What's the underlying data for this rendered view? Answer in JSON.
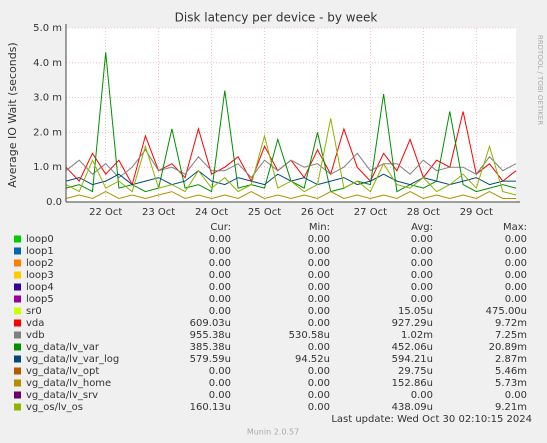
{
  "chart_data": {
    "type": "line",
    "title": "Disk latency per device - by week",
    "y_label": "Average IO Wait (seconds)",
    "watermark": "RRDTOOL / TOBI OETIKER",
    "categories": [
      null,
      null,
      null,
      "22 Oct",
      null,
      null,
      null,
      "23 Oct",
      null,
      null,
      null,
      "24 Oct",
      null,
      null,
      null,
      "25 Oct",
      null,
      null,
      null,
      "26 Oct",
      null,
      null,
      null,
      "27 Oct",
      null,
      null,
      null,
      "28 Oct",
      null,
      null,
      null,
      "29 Oct",
      null,
      null,
      null
    ],
    "ylim": [
      0,
      5
    ],
    "yticks": [
      {
        "value": 0,
        "label": "0.0"
      },
      {
        "value": 1,
        "label": "1.0 m"
      },
      {
        "value": 2,
        "label": "2.0 m"
      },
      {
        "value": 3,
        "label": "3.0 m"
      },
      {
        "value": 4,
        "label": "4.0 m"
      },
      {
        "value": 5,
        "label": "5.0 m"
      }
    ],
    "grid": true,
    "columns": [
      "Cur:",
      "Min:",
      "Avg:",
      "Max:"
    ],
    "series": [
      {
        "name": "loop0",
        "color": "#00cc00",
        "cur": "0.00",
        "min": "0.00",
        "avg": "0.00",
        "max": "0.00"
      },
      {
        "name": "loop1",
        "color": "#0066b3",
        "cur": "0.00",
        "min": "0.00",
        "avg": "0.00",
        "max": "0.00"
      },
      {
        "name": "loop2",
        "color": "#ff8000",
        "cur": "0.00",
        "min": "0.00",
        "avg": "0.00",
        "max": "0.00"
      },
      {
        "name": "loop3",
        "color": "#ffcc00",
        "cur": "0.00",
        "min": "0.00",
        "avg": "0.00",
        "max": "0.00"
      },
      {
        "name": "loop4",
        "color": "#330099",
        "cur": "0.00",
        "min": "0.00",
        "avg": "0.00",
        "max": "0.00"
      },
      {
        "name": "loop5",
        "color": "#990099",
        "cur": "0.00",
        "min": "0.00",
        "avg": "0.00",
        "max": "0.00"
      },
      {
        "name": "sr0",
        "color": "#ccff00",
        "cur": "0.00",
        "min": "0.00",
        "avg": "15.05u",
        "max": "475.00u"
      },
      {
        "name": "vda",
        "color": "#ff0000",
        "cur": "609.03u",
        "min": "0.00",
        "avg": "927.29u",
        "max": "9.72m",
        "values": [
          1.0,
          0.6,
          1.4,
          0.8,
          1.2,
          0.5,
          1.9,
          0.9,
          1.1,
          0.7,
          2.1,
          0.8,
          1.0,
          1.3,
          0.6,
          1.6,
          0.9,
          1.2,
          0.7,
          1.5,
          0.8,
          2.1,
          1.0,
          0.6,
          1.4,
          0.9,
          1.8,
          0.7,
          1.2,
          1.0,
          2.6,
          0.8,
          1.1,
          0.6,
          0.9
        ]
      },
      {
        "name": "vdb",
        "color": "#808080",
        "cur": "955.38u",
        "min": "530.58u",
        "avg": "1.02m",
        "max": "7.25m",
        "values": [
          0.9,
          1.2,
          0.8,
          1.1,
          0.7,
          1.0,
          1.5,
          0.9,
          1.0,
          0.8,
          1.3,
          0.9,
          0.9,
          1.1,
          0.7,
          1.2,
          0.9,
          1.2,
          1.0,
          1.1,
          0.8,
          1.0,
          1.4,
          0.9,
          1.1,
          1.1,
          0.8,
          1.2,
          0.9,
          1.0,
          1.0,
          0.8,
          1.3,
          0.9,
          1.1
        ]
      },
      {
        "name": "vg_data/lv_var",
        "color": "#008f00",
        "cur": "385.38u",
        "min": "0.00",
        "avg": "452.06u",
        "max": "20.89m",
        "values": [
          0.4,
          0.5,
          0.3,
          4.3,
          0.4,
          0.5,
          0.3,
          0.4,
          2.1,
          0.4,
          0.5,
          0.3,
          3.2,
          0.4,
          0.5,
          0.4,
          1.8,
          0.6,
          0.4,
          2.0,
          0.3,
          0.4,
          0.6,
          0.5,
          3.1,
          0.3,
          0.5,
          0.4,
          0.6,
          2.6,
          0.5,
          0.3,
          0.4,
          0.5,
          0.4
        ]
      },
      {
        "name": "vg_data/lv_var_log",
        "color": "#00487d",
        "cur": "579.59u",
        "min": "94.52u",
        "avg": "594.21u",
        "max": "2.87m",
        "values": [
          0.6,
          0.7,
          0.5,
          0.6,
          0.8,
          0.5,
          0.6,
          0.7,
          0.5,
          0.6,
          0.9,
          0.6,
          0.5,
          0.7,
          0.6,
          0.5,
          0.8,
          0.6,
          0.7,
          0.5,
          0.6,
          0.7,
          0.5,
          0.6,
          0.8,
          0.6,
          0.5,
          0.7,
          0.6,
          0.5,
          0.6,
          0.7,
          0.5,
          0.6,
          0.6
        ]
      },
      {
        "name": "vg_data/lv_opt",
        "color": "#b35a00",
        "cur": "0.00",
        "min": "0.00",
        "avg": "29.75u",
        "max": "5.46m"
      },
      {
        "name": "vg_data/lv_home",
        "color": "#b38f00",
        "cur": "0.00",
        "min": "0.00",
        "avg": "152.86u",
        "max": "5.73m",
        "values": [
          0.1,
          0.2,
          0.1,
          0.3,
          0.1,
          0.2,
          0.1,
          0.2,
          0.3,
          0.1,
          0.2,
          0.1,
          0.2,
          0.1,
          0.3,
          0.1,
          0.2,
          0.1,
          0.2,
          0.1,
          0.3,
          0.1,
          0.2,
          0.1,
          0.2,
          0.1,
          0.3,
          0.1,
          0.2,
          0.1,
          0.2,
          0.1,
          0.3,
          0.1,
          0.1
        ]
      },
      {
        "name": "vg_data/lv_srv",
        "color": "#6b006b",
        "cur": "0.00",
        "min": "0.00",
        "avg": "0.00",
        "max": "0.00"
      },
      {
        "name": "vg_os/lv_os",
        "color": "#8fb300",
        "cur": "160.13u",
        "min": "0.00",
        "avg": "438.09u",
        "max": "9.21m",
        "values": [
          0.5,
          0.3,
          1.2,
          0.4,
          0.6,
          0.3,
          1.6,
          0.4,
          0.5,
          0.3,
          0.9,
          0.4,
          0.7,
          0.3,
          0.5,
          1.9,
          0.4,
          0.6,
          0.3,
          0.5,
          2.4,
          0.4,
          0.6,
          0.3,
          1.1,
          0.5,
          0.4,
          0.7,
          0.3,
          0.5,
          0.8,
          0.4,
          1.6,
          0.3,
          0.2
        ]
      }
    ],
    "last_update": "Last update: Wed Oct 30 02:10:15 2024",
    "footer": "Munin 2.0.57"
  }
}
